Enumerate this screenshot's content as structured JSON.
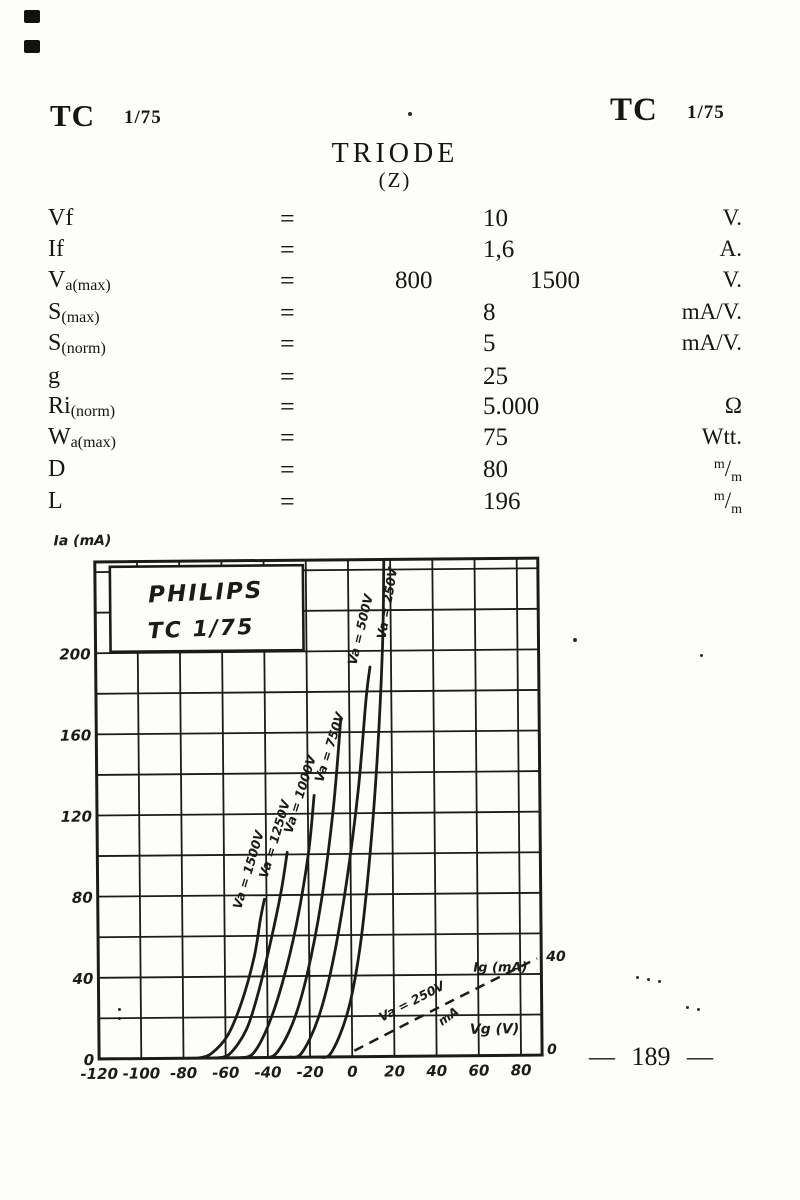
{
  "page": {
    "header_left": {
      "code": "TC",
      "issue": "1/75"
    },
    "header_right": {
      "code": "TC",
      "issue": "1/75"
    },
    "title": "TRIODE",
    "subtitle": "(Z)",
    "page_number": "— 189 —"
  },
  "specs": {
    "equals": "=",
    "rows": [
      {
        "label_main": "Vf",
        "label_sub": "",
        "v1": "",
        "v2": "10",
        "v3": "",
        "unit": "V."
      },
      {
        "label_main": "If",
        "label_sub": "",
        "v1": "",
        "v2": "1,6",
        "v3": "",
        "unit": "A."
      },
      {
        "label_main": "V",
        "label_sub": "a(max)",
        "v1": "800",
        "v2": "",
        "v3": "1500",
        "unit": "V."
      },
      {
        "label_main": "S",
        "label_sub": "(max)",
        "v1": "",
        "v2": "8",
        "v3": "",
        "unit": "mA/V."
      },
      {
        "label_main": "S",
        "label_sub": "(norm)",
        "v1": "",
        "v2": "5",
        "v3": "",
        "unit": "mA/V."
      },
      {
        "label_main": "g",
        "label_sub": "",
        "v1": "",
        "v2": "25",
        "v3": "",
        "unit": ""
      },
      {
        "label_main": "Ri",
        "label_sub": "(norm)",
        "v1": "",
        "v2": "5.000",
        "v3": "",
        "unit": "Ω"
      },
      {
        "label_main": "W",
        "label_sub": "a(max)",
        "v1": "",
        "v2": "75",
        "v3": "",
        "unit": "Wtt."
      },
      {
        "label_main": "D",
        "label_sub": "",
        "v1": "",
        "v2": "80",
        "v3": "",
        "unit": "",
        "unit_sup": "m",
        "unit_slash": "/",
        "unit_sub": "m"
      },
      {
        "label_main": "L",
        "label_sub": "",
        "v1": "",
        "v2": "196",
        "v3": "",
        "unit": "",
        "unit_sup": "m",
        "unit_slash": "/",
        "unit_sub": "m"
      }
    ]
  },
  "chart_data": {
    "type": "line",
    "title_box": {
      "line1": "PHILIPS",
      "line2": "TC 1/75"
    },
    "ylabel": "Ia (mA)",
    "xlabel": "Vg (V)",
    "right_axis_label": "Ig (mA)",
    "ma_note": "mA",
    "xlim": [
      -120,
      90
    ],
    "ylim": [
      0,
      245
    ],
    "x_ticks": [
      -120,
      -100,
      -80,
      -60,
      -40,
      -20,
      0,
      20,
      40,
      60,
      80
    ],
    "y_ticks": [
      0,
      40,
      80,
      120,
      160,
      200
    ],
    "right_ticks": [
      0,
      40
    ],
    "grid_step_x": 20,
    "grid_step_y": 20,
    "series": [
      {
        "name": "Va = 1500V",
        "va_volts": 1500,
        "points": [
          [
            -73,
            0
          ],
          [
            -67,
            2
          ],
          [
            -59,
            11
          ],
          [
            -52,
            28
          ],
          [
            -46,
            50
          ],
          [
            -43,
            68
          ],
          [
            -41,
            78
          ]
        ]
      },
      {
        "name": "Va = 1250V",
        "va_volts": 1250,
        "points": [
          [
            -64,
            0
          ],
          [
            -58,
            2
          ],
          [
            -50,
            14
          ],
          [
            -44,
            33
          ],
          [
            -38,
            58
          ],
          [
            -33,
            82
          ],
          [
            -30,
            101
          ]
        ]
      },
      {
        "name": "Va = 1000V",
        "va_volts": 1000,
        "points": [
          [
            -53,
            0
          ],
          [
            -47,
            2
          ],
          [
            -40,
            15
          ],
          [
            -33,
            36
          ],
          [
            -26,
            65
          ],
          [
            -20,
            100
          ],
          [
            -17,
            129
          ]
        ]
      },
      {
        "name": "Va = 750V",
        "va_volts": 750,
        "points": [
          [
            -42,
            0
          ],
          [
            -36,
            2
          ],
          [
            -28,
            17
          ],
          [
            -21,
            41
          ],
          [
            -14,
            77
          ],
          [
            -8,
            122
          ],
          [
            -4,
            167
          ]
        ]
      },
      {
        "name": "Va = 500V",
        "va_volts": 500,
        "points": [
          [
            -30,
            0
          ],
          [
            -24,
            2
          ],
          [
            -16,
            19
          ],
          [
            -9,
            46
          ],
          [
            -2,
            86
          ],
          [
            4,
            132
          ],
          [
            8,
            176
          ],
          [
            10,
            192
          ]
        ]
      },
      {
        "name": "Va = 250V",
        "va_volts": 250,
        "points": [
          [
            -16,
            0
          ],
          [
            -10,
            2
          ],
          [
            -2,
            22
          ],
          [
            4,
            53
          ],
          [
            9,
            97
          ],
          [
            13,
            146
          ],
          [
            16,
            201
          ],
          [
            17,
            244
          ]
        ]
      }
    ],
    "dashed_series": {
      "name": "Va = 250V",
      "axis": "right",
      "points": [
        [
          1,
          0
        ],
        [
          45,
          20
        ],
        [
          88,
          39
        ]
      ]
    }
  }
}
